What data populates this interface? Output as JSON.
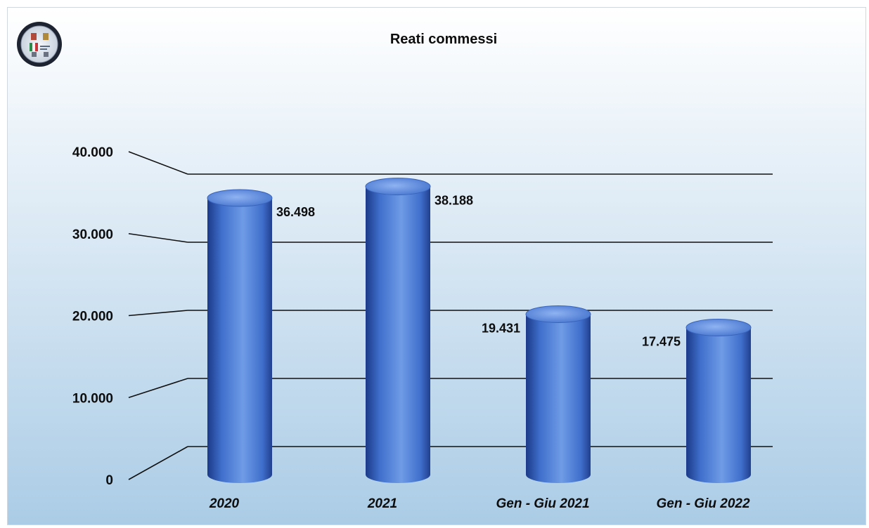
{
  "chart_data": {
    "type": "bar",
    "title": "Reati commessi",
    "categories": [
      "2020",
      "2021",
      "Gen - Giu 2021",
      "Gen - Giu 2022"
    ],
    "values": [
      36498,
      38188,
      19431,
      17475
    ],
    "value_labels": [
      "36.498",
      "38.188",
      "19.431",
      "17.475"
    ],
    "y_ticks": [
      0,
      10000,
      20000,
      30000,
      40000
    ],
    "y_tick_labels": [
      "0",
      "10.000",
      "20.000",
      "30.000",
      "40.000"
    ],
    "ylim": [
      0,
      40000
    ],
    "xlabel": "",
    "ylabel": "",
    "grid": true,
    "legend": "none",
    "bar_style": "3d-cylinder",
    "colors": {
      "bar_light": "#6f9be6",
      "bar_mid": "#3f6fcc",
      "bar_dark": "#1c3a88",
      "background_top": "#ffffff",
      "background_bottom": "#abcce6",
      "gridline": "#111111"
    }
  },
  "logo": {
    "icon": "emblem-icon"
  }
}
